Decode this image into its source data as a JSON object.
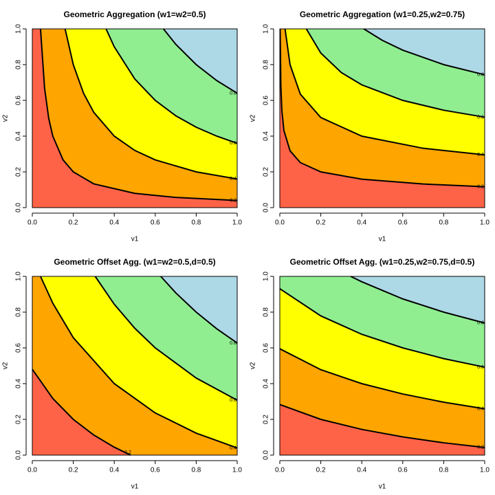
{
  "chart_data": [
    {
      "type": "contour",
      "title": "Geometric Aggregation (w1=w2=0.5)",
      "xlabel": "v1",
      "ylabel": "v2",
      "xlim": [
        0,
        1
      ],
      "ylim": [
        0,
        1
      ],
      "xticks": [
        {
          "value": 0,
          "label": "0.0"
        },
        0.2,
        0.4,
        0.6,
        0.8,
        {
          "value": 1,
          "label": "1.0"
        }
      ],
      "yticks": [
        {
          "value": 0,
          "label": "0.0"
        },
        0.2,
        0.4,
        0.6,
        0.8,
        {
          "value": 1,
          "label": "1.0"
        }
      ],
      "colors": [
        "#ff6347",
        "#ffa500",
        "#ffff00",
        "#90ee90",
        "#add8e6"
      ],
      "contours": [
        {
          "level": 0.2,
          "x": [
            0.04,
            0.06,
            0.08,
            0.1,
            0.15,
            0.2,
            0.3,
            0.5,
            0.7,
            1
          ],
          "y": [
            1,
            0.667,
            0.5,
            0.4,
            0.267,
            0.2,
            0.133,
            0.08,
            0.057,
            0.04
          ]
        },
        {
          "level": 0.4,
          "x": [
            0.16,
            0.2,
            0.25,
            0.3,
            0.4,
            0.5,
            0.6,
            0.8,
            1
          ],
          "y": [
            1,
            0.8,
            0.64,
            0.533,
            0.4,
            0.32,
            0.267,
            0.2,
            0.16
          ]
        },
        {
          "level": 0.6,
          "x": [
            0.36,
            0.4,
            0.5,
            0.6,
            0.7,
            0.8,
            0.9,
            1
          ],
          "y": [
            1,
            0.9,
            0.72,
            0.6,
            0.514,
            0.45,
            0.4,
            0.36
          ]
        },
        {
          "level": 0.8,
          "x": [
            0.64,
            0.7,
            0.8,
            0.9,
            1
          ],
          "y": [
            1,
            0.914,
            0.8,
            0.711,
            0.64
          ]
        }
      ]
    },
    {
      "type": "contour",
      "title": "Geometric Aggregation (w1=0.25,w2=0.75)",
      "xlabel": "v1",
      "ylabel": "v2",
      "xlim": [
        0,
        1
      ],
      "ylim": [
        0,
        1
      ],
      "xticks": [
        {
          "value": 0,
          "label": "0.0"
        },
        0.2,
        0.4,
        0.6,
        0.8,
        {
          "value": 1,
          "label": "1.0"
        }
      ],
      "yticks": [
        {
          "value": 0,
          "label": "0.0"
        },
        0.2,
        0.4,
        0.6,
        0.8,
        {
          "value": 1,
          "label": "1.0"
        }
      ],
      "colors": [
        "#ff6347",
        "#ffa500",
        "#ffff00",
        "#90ee90",
        "#add8e6"
      ],
      "contours": [
        {
          "level": 0.2,
          "x": [
            0.0016,
            0.005,
            0.01,
            0.02,
            0.05,
            0.1,
            0.2,
            0.4,
            0.7,
            1
          ],
          "y": [
            1,
            0.684,
            0.543,
            0.431,
            0.318,
            0.252,
            0.2,
            0.159,
            0.132,
            0.117
          ]
        },
        {
          "level": 0.4,
          "x": [
            0.0256,
            0.05,
            0.1,
            0.2,
            0.4,
            0.7,
            1
          ],
          "y": [
            1,
            0.8,
            0.635,
            0.504,
            0.4,
            0.332,
            0.295
          ]
        },
        {
          "level": 0.6,
          "x": [
            0.1296,
            0.2,
            0.3,
            0.4,
            0.6,
            0.8,
            1
          ],
          "y": [
            1,
            0.865,
            0.756,
            0.687,
            0.6,
            0.545,
            0.506
          ]
        },
        {
          "level": 0.8,
          "x": [
            0.41,
            0.5,
            0.6,
            0.8,
            1
          ],
          "y": [
            1,
            0.936,
            0.881,
            0.8,
            0.743
          ]
        }
      ]
    },
    {
      "type": "contour",
      "title": "Geometric Offset Agg. (w1=w2=0.5,d=0.5)",
      "xlabel": "v1",
      "ylabel": "v2",
      "xlim": [
        0,
        1
      ],
      "ylim": [
        0,
        1
      ],
      "xticks": [
        {
          "value": 0,
          "label": "0.0"
        },
        0.2,
        0.4,
        0.6,
        0.8,
        {
          "value": 1,
          "label": "1.0"
        }
      ],
      "yticks": [
        {
          "value": 0,
          "label": "0.0"
        },
        0.2,
        0.4,
        0.6,
        0.8,
        {
          "value": 1,
          "label": "1.0"
        }
      ],
      "colors": [
        "#ff6347",
        "#ffa500",
        "#ffff00",
        "#90ee90",
        "#add8e6"
      ],
      "contours": [
        {
          "level": 0.2,
          "x": [
            0,
            0.1,
            0.2,
            0.3,
            0.4,
            0.48
          ],
          "y": [
            0.48,
            0.317,
            0.2,
            0.1125,
            0.0444,
            0
          ]
        },
        {
          "level": 0.4,
          "x": [
            0.04,
            0.1,
            0.2,
            0.4,
            0.6,
            0.8,
            1
          ],
          "y": [
            1,
            0.85,
            0.657,
            0.4,
            0.236,
            0.123,
            0.04
          ]
        },
        {
          "level": 0.6,
          "x": [
            0.307,
            0.4,
            0.5,
            0.6,
            0.8,
            1
          ],
          "y": [
            1,
            0.844,
            0.71,
            0.6,
            0.431,
            0.307
          ]
        },
        {
          "level": 0.8,
          "x": [
            0.627,
            0.7,
            0.8,
            0.9,
            1
          ],
          "y": [
            1,
            0.908,
            0.8,
            0.707,
            0.627
          ]
        }
      ]
    },
    {
      "type": "contour",
      "title": "Geometric Offset Agg. (w1=0.25,w2=0.75,d=0.5)",
      "xlabel": "v1",
      "ylabel": "v2",
      "xlim": [
        0,
        1
      ],
      "ylim": [
        0,
        1
      ],
      "xticks": [
        {
          "value": 0,
          "label": "0.0"
        },
        0.2,
        0.4,
        0.6,
        0.8,
        {
          "value": 1,
          "label": "1.0"
        }
      ],
      "yticks": [
        {
          "value": 0,
          "label": "0.0"
        },
        0.2,
        0.4,
        0.6,
        0.8,
        {
          "value": 1,
          "label": "1.0"
        }
      ],
      "colors": [
        "#ff6347",
        "#ffa500",
        "#ffff00",
        "#90ee90",
        "#add8e6"
      ],
      "contours": [
        {
          "level": 0.2,
          "x": [
            0,
            0.2,
            0.4,
            0.6,
            0.8,
            1
          ],
          "y": [
            0.283,
            0.2,
            0.144,
            0.102,
            0.069,
            0.043
          ]
        },
        {
          "level": 0.4,
          "x": [
            0,
            0.2,
            0.4,
            0.6,
            0.8,
            1
          ],
          "y": [
            0.595,
            0.478,
            0.4,
            0.342,
            0.296,
            0.259
          ]
        },
        {
          "level": 0.6,
          "x": [
            0,
            0.2,
            0.4,
            0.6,
            0.8,
            1
          ],
          "y": [
            0.931,
            0.779,
            0.676,
            0.6,
            0.54,
            0.492
          ]
        },
        {
          "level": 0.8,
          "x": [
            0.346,
            0.4,
            0.6,
            0.8,
            1
          ],
          "y": [
            1,
            0.97,
            0.874,
            0.8,
            0.739
          ]
        }
      ]
    }
  ]
}
